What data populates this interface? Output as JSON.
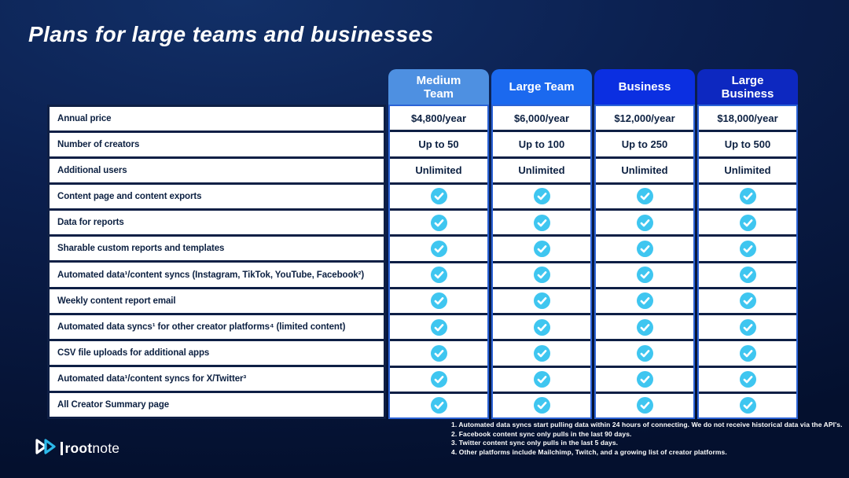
{
  "page": {
    "title": "Plans for large teams and businesses"
  },
  "colors": {
    "background_top": "#123068",
    "background_bottom": "#04102e",
    "row_divider_navy": "#0e1f45",
    "column_border_blue": "#2b63d6",
    "check_cyan": "#3fc6f0",
    "cell_text_navy": "#0d2142"
  },
  "table": {
    "row_labels": [
      "Annual price",
      "Number of creators",
      "Additional users",
      "Content page and content exports",
      "Data for reports",
      "Sharable custom reports and templates",
      "Automated data¹/content syncs (Instagram, TikTok, YouTube, Facebook²)",
      "Weekly content report email",
      "Automated data syncs¹ for other creator platforms⁴ (limited content)",
      "CSV file uploads for additional apps",
      "Automated data¹/content syncs for X/Twitter³",
      "All Creator Summary page"
    ],
    "plans": [
      {
        "name": "Medium Team",
        "name_lines": [
          "Medium",
          "Team"
        ],
        "header_color": "#4e90e1",
        "values": [
          "$4,800/year",
          "Up to 50",
          "Unlimited"
        ],
        "checks": [
          true,
          true,
          true,
          true,
          true,
          true,
          true,
          true,
          true
        ]
      },
      {
        "name": "Large Team",
        "name_lines": [
          "Large Team"
        ],
        "header_color": "#1b69ef",
        "values": [
          "$6,000/year",
          "Up to 100",
          "Unlimited"
        ],
        "checks": [
          true,
          true,
          true,
          true,
          true,
          true,
          true,
          true,
          true
        ]
      },
      {
        "name": "Business",
        "name_lines": [
          "Business"
        ],
        "header_color": "#0b2fe1",
        "values": [
          "$12,000/year",
          "Up to 250",
          "Unlimited"
        ],
        "checks": [
          true,
          true,
          true,
          true,
          true,
          true,
          true,
          true,
          true
        ]
      },
      {
        "name": "Large Business",
        "name_lines": [
          "Large",
          "Business"
        ],
        "header_color": "#0d28c0",
        "values": [
          "$18,000/year",
          "Up to 500",
          "Unlimited"
        ],
        "checks": [
          true,
          true,
          true,
          true,
          true,
          true,
          true,
          true,
          true
        ]
      }
    ]
  },
  "footnotes": [
    "1. Automated data syncs start pulling data within 24 hours of connecting. We do not receive historical data via the API's.",
    "2. Facebook content sync only pulls in the last 90 days.",
    "3. Twitter content sync only pulls in the last 5 days.",
    "4. Other platforms include Mailchimp, Twitch, and a growing list of creator platforms."
  ],
  "logo": {
    "bold": "root",
    "regular": "note"
  }
}
